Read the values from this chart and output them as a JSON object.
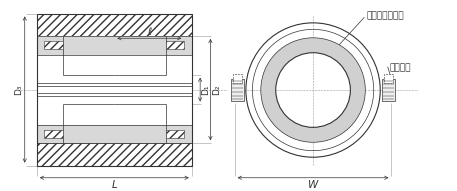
{
  "bg_color": "#ffffff",
  "line_color": "#333333",
  "label_ell": "ℓ",
  "label_L": "L",
  "label_W": "W",
  "label_D1": "D₁",
  "label_D2": "D₂",
  "label_D3": "D₃",
  "label_gomupacking": "ゴムパッキング",
  "label_toritsuke": "取付ネジ",
  "font_size_label": 6.5
}
